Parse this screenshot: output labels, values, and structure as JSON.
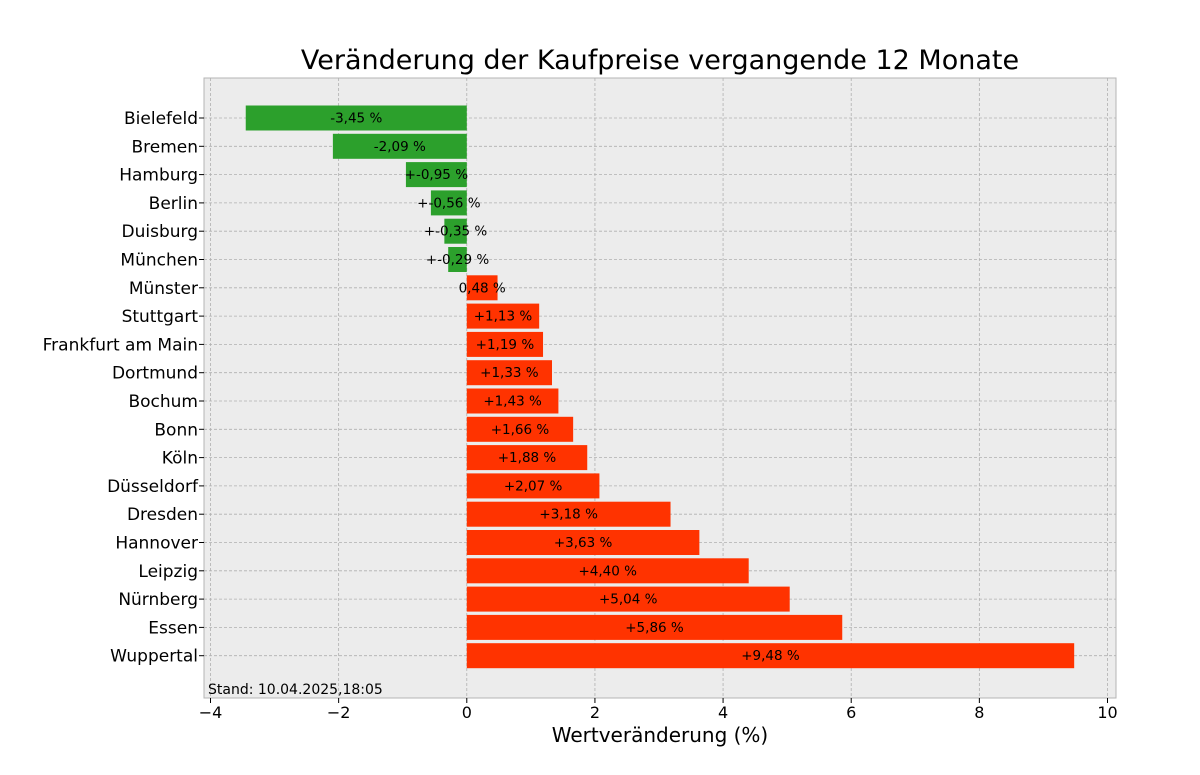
{
  "chart_data": {
    "type": "bar",
    "orientation": "horizontal",
    "title": "Veränderung der Kaufpreise vergangende 12 Monate",
    "xlabel": "Wertveränderung (%)",
    "ylabel": "",
    "xlim": [
      -4,
      10
    ],
    "xticks": [
      -4,
      -2,
      0,
      2,
      4,
      6,
      8,
      10
    ],
    "xtick_labels": [
      "−4",
      "−2",
      "0",
      "2",
      "4",
      "6",
      "8",
      "10"
    ],
    "grid": true,
    "colors": {
      "negative": "#2ca02c",
      "positive": "#ff3300",
      "background": "#ececec"
    },
    "categories": [
      "Bielefeld",
      "Bremen",
      "Hamburg",
      "Berlin",
      "Duisburg",
      "München",
      "Münster",
      "Stuttgart",
      "Frankfurt am Main",
      "Dortmund",
      "Bochum",
      "Bonn",
      "Köln",
      "Düsseldorf",
      "Dresden",
      "Hannover",
      "Leipzig",
      "Nürnberg",
      "Essen",
      "Wuppertal"
    ],
    "values": [
      -3.45,
      -2.09,
      -0.95,
      -0.56,
      -0.35,
      -0.29,
      0.48,
      1.13,
      1.19,
      1.33,
      1.43,
      1.66,
      1.88,
      2.07,
      3.18,
      3.63,
      4.4,
      5.04,
      5.86,
      9.48
    ],
    "data_labels": [
      "-3,45 %",
      "-2,09 %",
      "+-0,95 %",
      "+-0,56 %",
      "+-0,35 %",
      "+-0,29 %",
      "0,48 %",
      "+1,13 %",
      "+1,19 %",
      "+1,33 %",
      "+1,43 %",
      "+1,66 %",
      "+1,88 %",
      "+2,07 %",
      "+3,18 %",
      "+3,63 %",
      "+4,40 %",
      "+5,04 %",
      "+5,86 %",
      "+9,48 %"
    ],
    "annotation": "Stand: 10.04.2025,18:05"
  }
}
